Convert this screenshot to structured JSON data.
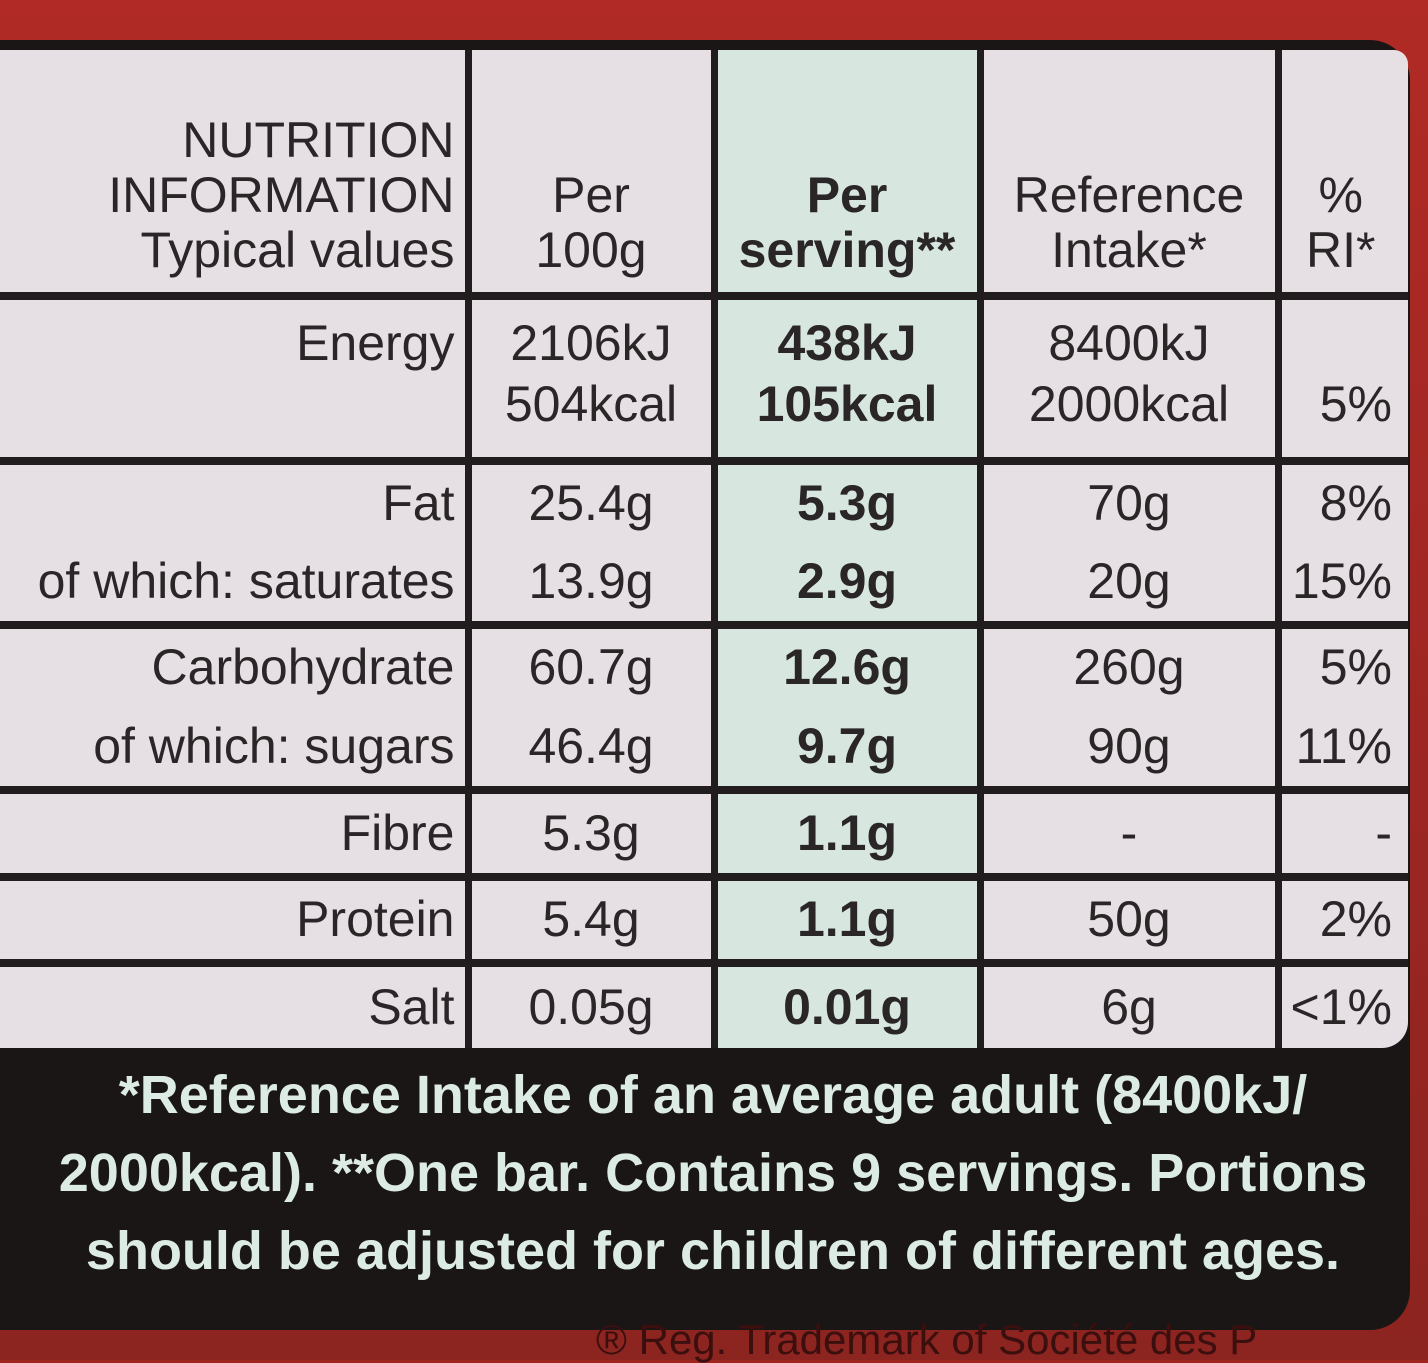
{
  "header": {
    "label_line1": "NUTRITION",
    "label_line2": "INFORMATION",
    "label_line3": "Typical values",
    "per100_line1": "Per",
    "per100_line2": "100g",
    "serving_line1": "Per",
    "serving_line2": "serving**",
    "ref_line1": "Reference",
    "ref_line2": "Intake*",
    "ri_line1": "%",
    "ri_line2": "RI*"
  },
  "rows": [
    {
      "label": "Energy",
      "per100": "2106kJ",
      "serving": "438kJ",
      "ref": "8400kJ",
      "ri": ""
    },
    {
      "label": "",
      "per100": "504kcal",
      "serving": "105kcal",
      "ref": "2000kcal",
      "ri": "5%"
    },
    {
      "label": "Fat",
      "per100": "25.4g",
      "serving": "5.3g",
      "ref": "70g",
      "ri": "8%"
    },
    {
      "label": "of which: saturates",
      "per100": "13.9g",
      "serving": "2.9g",
      "ref": "20g",
      "ri": "15%"
    },
    {
      "label": "Carbohydrate",
      "per100": "60.7g",
      "serving": "12.6g",
      "ref": "260g",
      "ri": "5%"
    },
    {
      "label": "of which: sugars",
      "per100": "46.4g",
      "serving": "9.7g",
      "ref": "90g",
      "ri": "11%"
    },
    {
      "label": "Fibre",
      "per100": "5.3g",
      "serving": "1.1g",
      "ref": "-",
      "ri": "-"
    },
    {
      "label": "Protein",
      "per100": "5.4g",
      "serving": "1.1g",
      "ref": "50g",
      "ri": "2%"
    },
    {
      "label": "Salt",
      "per100": "0.05g",
      "serving": "0.01g",
      "ref": "6g",
      "ri": "<1%"
    }
  ],
  "footnote": {
    "line1": "*Reference Intake of an average adult (8400kJ/",
    "line2": "2000kcal). **One bar. Contains 9 servings. Portions",
    "line3": "should be adjusted for children of different ages."
  },
  "trademark": "® Reg. Trademark of Société des P"
}
